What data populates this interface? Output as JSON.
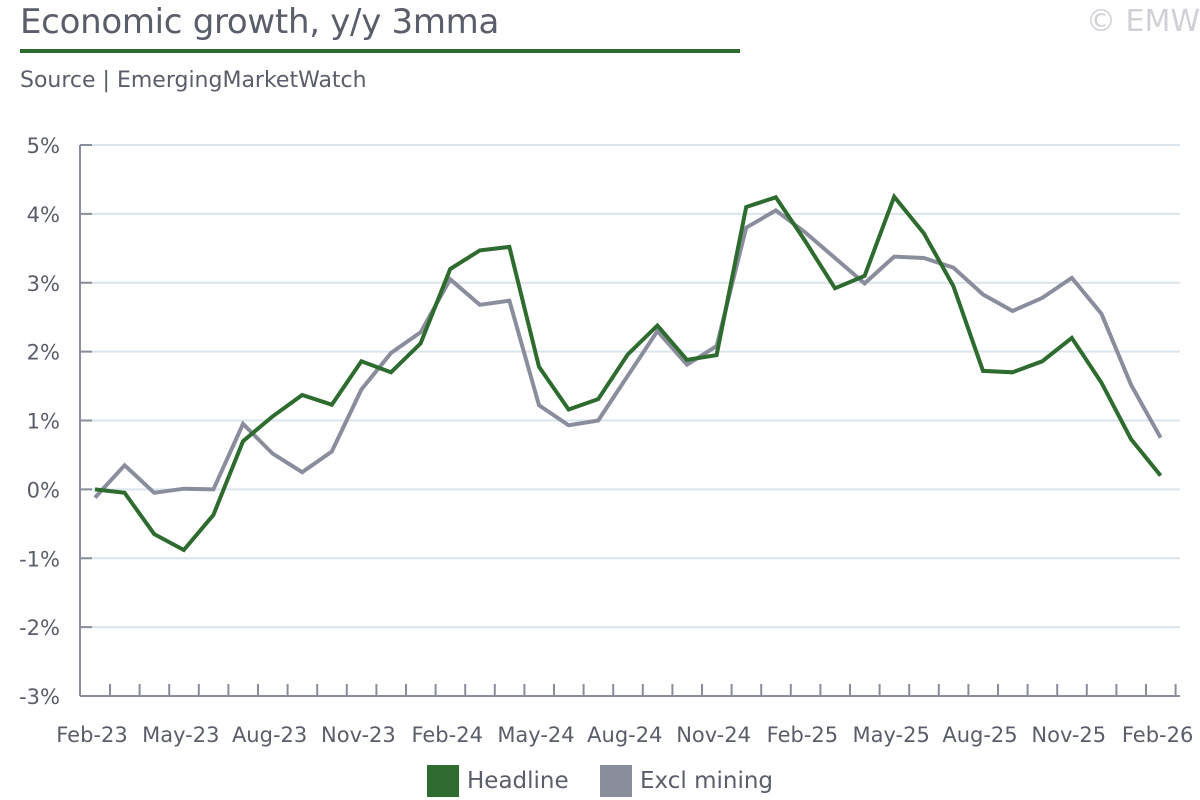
{
  "header": {
    "title": "Economic growth, y/y 3mma",
    "subtitle": "Source | EmergingMarketWatch",
    "watermark": "© EMW"
  },
  "colors": {
    "headline": "#2e6b2e",
    "excl_mining": "#8a8d9c",
    "grid": "#d9e4ec",
    "axis": "#8a8d9c",
    "title_rule": "#2e6b2e"
  },
  "chart_data": {
    "type": "line",
    "title": "Economic growth, y/y 3mma",
    "xlabel": "",
    "ylabel": "",
    "ylim": [
      -3,
      5
    ],
    "y_ticks": [
      "5%",
      "4%",
      "3%",
      "2%",
      "1%",
      "0%",
      "-1%",
      "-2%",
      "-3%"
    ],
    "y_tick_values": [
      5,
      4,
      3,
      2,
      1,
      0,
      -1,
      -2,
      -3
    ],
    "x": [
      "Feb-23",
      "Mar-23",
      "Apr-23",
      "May-23",
      "Jun-23",
      "Jul-23",
      "Aug-23",
      "Sep-23",
      "Oct-23",
      "Nov-23",
      "Dec-23",
      "Jan-24",
      "Feb-24",
      "Mar-24",
      "Apr-24",
      "May-24",
      "Jun-24",
      "Jul-24",
      "Aug-24",
      "Sep-24",
      "Oct-24",
      "Nov-24",
      "Dec-24",
      "Jan-25",
      "Feb-25",
      "Mar-25",
      "Apr-25",
      "May-25",
      "Jun-25",
      "Jul-25",
      "Aug-25",
      "Sep-25",
      "Oct-25",
      "Nov-25",
      "Dec-25",
      "Jan-26",
      "Feb-26"
    ],
    "x_tick_labels": [
      "Feb-23",
      "May-23",
      "Aug-23",
      "Nov-23",
      "Feb-24",
      "May-24",
      "Aug-24",
      "Nov-24",
      "Feb-25",
      "May-25",
      "Aug-25",
      "Nov-25",
      "Feb-26"
    ],
    "grid": true,
    "legend_position": "bottom-center",
    "series": [
      {
        "name": "Headline",
        "values": [
          0.0,
          -0.05,
          -0.65,
          -0.88,
          -0.37,
          0.7,
          1.06,
          1.37,
          1.23,
          1.86,
          1.7,
          2.12,
          3.2,
          3.47,
          3.52,
          1.78,
          1.16,
          1.31,
          1.96,
          2.38,
          1.88,
          1.95,
          4.1,
          4.24,
          3.6,
          2.92,
          3.1,
          4.25,
          3.72,
          2.95,
          1.72,
          1.7,
          1.86,
          2.2,
          1.55,
          0.73,
          0.2
        ]
      },
      {
        "name": "Excl mining",
        "values": [
          -0.12,
          0.35,
          -0.05,
          0.01,
          0.0,
          0.95,
          0.52,
          0.25,
          0.55,
          1.45,
          1.98,
          2.28,
          3.05,
          2.68,
          2.74,
          1.22,
          0.93,
          1.0,
          1.65,
          2.3,
          1.81,
          2.08,
          3.8,
          4.05,
          3.73,
          3.36,
          2.99,
          3.38,
          3.36,
          3.22,
          2.83,
          2.59,
          2.78,
          3.07,
          2.55,
          1.52,
          0.75
        ]
      }
    ]
  },
  "legend": {
    "items": [
      {
        "label": "Headline"
      },
      {
        "label": "Excl mining"
      }
    ]
  }
}
